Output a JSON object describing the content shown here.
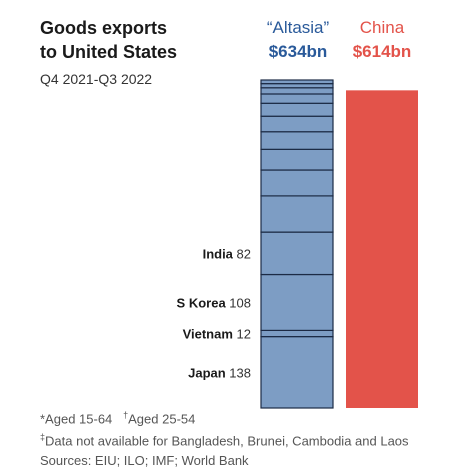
{
  "header": {
    "title_line1": "Goods exports",
    "title_line2": "to United States",
    "subtitle": "Q4 2021-Q3 2022"
  },
  "columns": {
    "altasia": {
      "name": "“Altasia”",
      "total": "$634bn",
      "color": "#2a5a9a"
    },
    "china": {
      "name": "China",
      "total": "$614bn",
      "color": "#e3534a"
    }
  },
  "footnotes": {
    "line1_a": "*Aged 15-64",
    "line1_b": "Aged 25-54",
    "line2": "Data not available for Bangladesh, Brunei, Cambodia and Laos",
    "line3": "Sources: EIU; ILO; IMF; World Bank"
  },
  "chart_data": {
    "type": "bar",
    "unit": "$bn",
    "stacked": true,
    "y_range": [
      0,
      634
    ],
    "series": [
      {
        "name": "“Altasia”",
        "total": 634,
        "color": "#7d9dc4",
        "segments": [
          {
            "label": "Japan",
            "value": 138
          },
          {
            "label": "Vietnam",
            "value": 12
          },
          {
            "label": "S Korea",
            "value": 108
          },
          {
            "label": "India",
            "value": 82
          },
          {
            "label": "",
            "value": 70
          },
          {
            "label": "",
            "value": 50
          },
          {
            "label": "",
            "value": 40
          },
          {
            "label": "",
            "value": 34
          },
          {
            "label": "",
            "value": 30
          },
          {
            "label": "",
            "value": 25
          },
          {
            "label": "",
            "value": 18
          },
          {
            "label": "",
            "value": 12
          },
          {
            "label": "",
            "value": 8
          },
          {
            "label": "",
            "value": 7
          }
        ]
      },
      {
        "name": "China",
        "total": 614,
        "color": "#e3534a"
      }
    ]
  }
}
